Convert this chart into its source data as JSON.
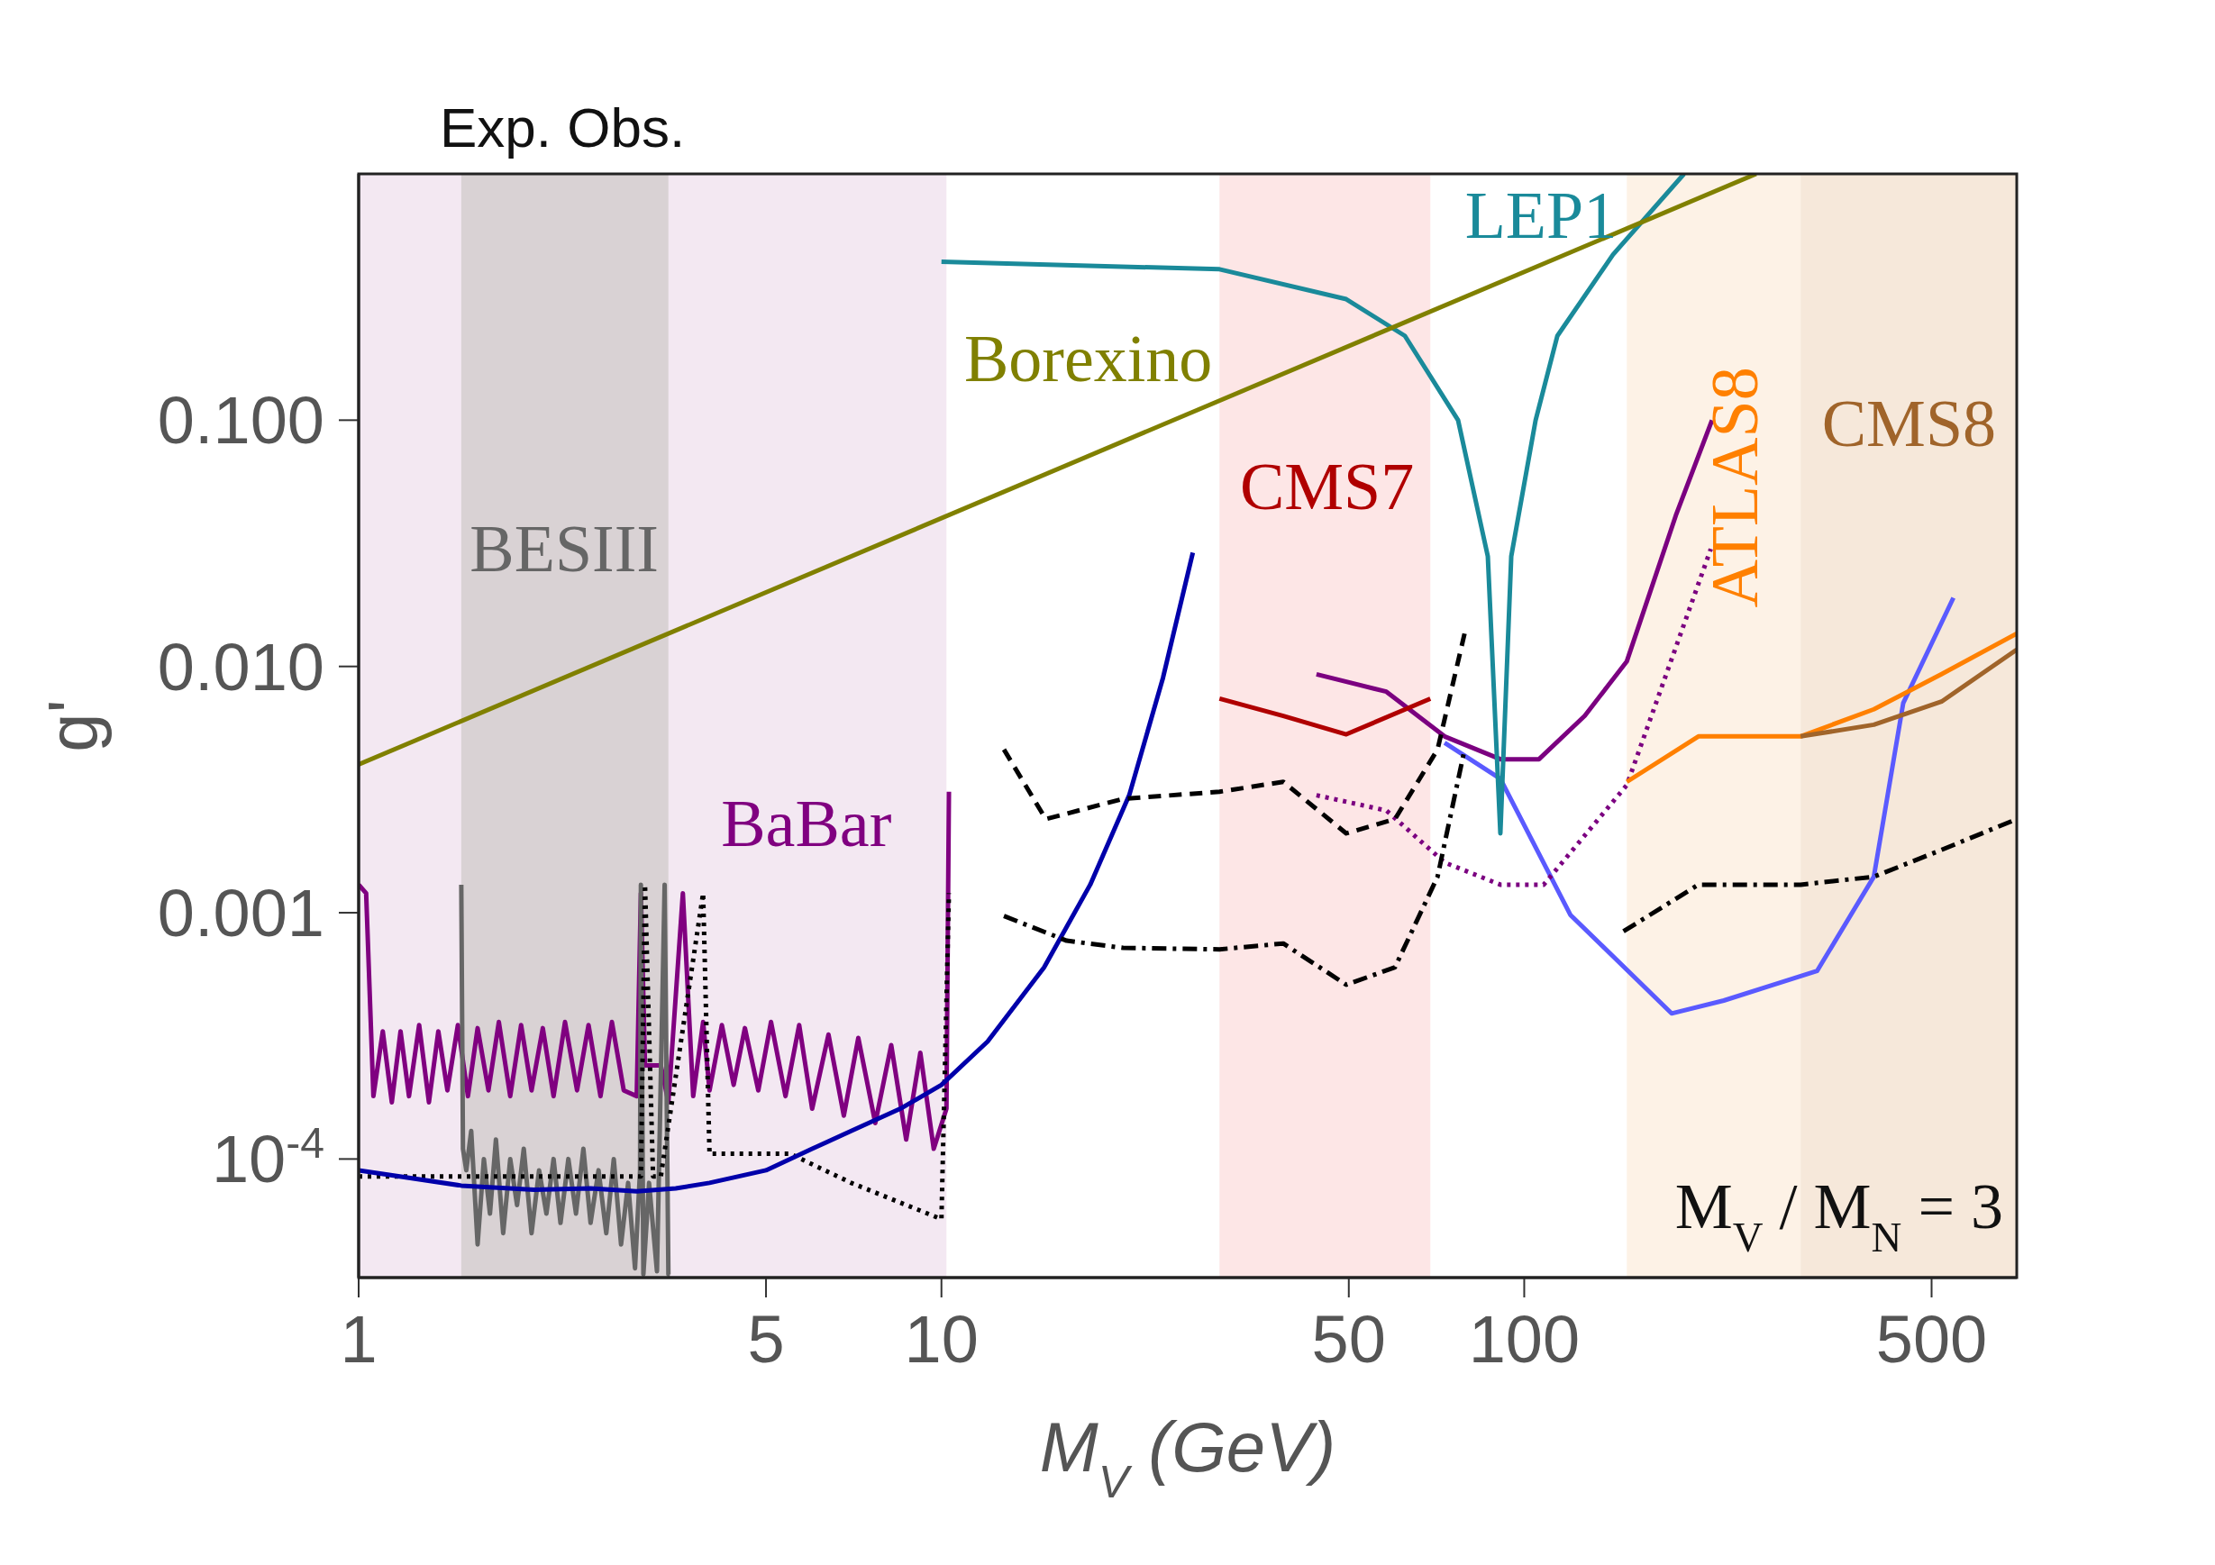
{
  "chart_data": {
    "type": "line",
    "xlabel": "M$_{V}$ (GeV)",
    "ylabel": "g'",
    "log": "xy",
    "marker": "none",
    "xlim": [
      1,
      700
    ],
    "xticks": [
      1,
      5,
      10,
      50,
      100,
      500
    ],
    "ylim": [
      3.3e-05,
      1
    ],
    "yticks": [
      {
        "value": 0.0001,
        "label": "10$^{-4}$"
      },
      {
        "value": 0.001,
        "label": "0.001"
      },
      {
        "value": 0.01,
        "label": "0.010"
      },
      {
        "value": 0.1,
        "label": "0.100"
      }
    ],
    "annotations": [
      "Exp. Obs.",
      "M$_{V}$ / M$_{N}$ = 3"
    ],
    "bands": [
      {
        "axis": "x",
        "from": 1,
        "to": 10.2,
        "color": "#f3e8f2"
      },
      {
        "axis": "x",
        "from": 1.5,
        "to": 3.4,
        "color": "#d9d2d4"
      },
      {
        "axis": "x",
        "from": 30,
        "to": 69,
        "color": "#fde6e6"
      },
      {
        "axis": "x",
        "from": 150,
        "to": 298,
        "color": "#fdf2e6"
      },
      {
        "axis": "x",
        "from": 298,
        "to": 700,
        "color": "#f6e8da"
      }
    ],
    "series": [
      {
        "name": "BaBar",
        "color": "#800080",
        "line_style": "solid",
        "x": [
          1,
          1.03,
          1.06,
          1.1,
          1.14,
          1.18,
          1.22,
          1.27,
          1.32,
          1.37,
          1.42,
          1.48,
          1.54,
          1.6,
          1.67,
          1.74,
          1.82,
          1.9,
          1.98,
          2.07,
          2.16,
          2.26,
          2.37,
          2.48,
          2.6,
          2.72,
          2.85,
          3.0,
          3.05,
          3.1,
          3.3,
          3.4,
          3.6,
          3.75,
          3.9,
          4.0,
          4.2,
          4.4,
          4.6,
          4.85,
          5.1,
          5.4,
          5.7,
          6.0,
          6.4,
          6.8,
          7.2,
          7.7,
          8.2,
          8.7,
          9.2,
          9.7,
          10.2,
          10.3
        ],
        "values": [
          0.0013,
          0.0012,
          0.00018,
          0.00033,
          0.00017,
          0.00033,
          0.00018,
          0.00035,
          0.00017,
          0.00033,
          0.00019,
          0.00035,
          0.00018,
          0.00034,
          0.00019,
          0.00036,
          0.00018,
          0.00035,
          0.00019,
          0.00034,
          0.00018,
          0.00036,
          0.00019,
          0.00035,
          0.00018,
          0.00036,
          0.00019,
          0.00018,
          0.0012,
          0.00024,
          0.00024,
          0.00017,
          0.0012,
          0.00018,
          0.00036,
          0.00019,
          0.00035,
          0.0002,
          0.00034,
          0.00019,
          0.00036,
          0.00018,
          0.00035,
          0.00016,
          0.00032,
          0.00015,
          0.00031,
          0.00014,
          0.00029,
          0.00012,
          0.00027,
          0.00011,
          0.00016,
          0.0031
        ]
      },
      {
        "name": "BESIII",
        "color": "#666666",
        "line_style": "solid",
        "x": [
          1.5,
          1.51,
          1.53,
          1.56,
          1.6,
          1.64,
          1.68,
          1.72,
          1.77,
          1.82,
          1.87,
          1.92,
          1.98,
          2.04,
          2.1,
          2.16,
          2.22,
          2.29,
          2.36,
          2.43,
          2.5,
          2.58,
          2.66,
          2.74,
          2.82,
          2.9,
          2.98,
          3.04,
          3.05,
          3.08,
          3.15,
          3.25,
          3.35,
          3.4,
          3.42
        ],
        "values": [
          0.0013,
          0.00011,
          9e-05,
          0.00013,
          4.5e-05,
          0.0001,
          6e-05,
          0.00012,
          5e-05,
          0.0001,
          6.5e-05,
          0.00011,
          5e-05,
          9e-05,
          6e-05,
          0.0001,
          5.5e-05,
          0.0001,
          6e-05,
          0.00011,
          5.5e-05,
          9e-05,
          5e-05,
          0.0001,
          4.5e-05,
          8e-05,
          3.6e-05,
          9e-05,
          0.0013,
          3.4e-05,
          8e-05,
          3.5e-05,
          0.0013,
          3.4e-05,
          3.4e-05
        ]
      },
      {
        "color": "#000000",
        "line_style": "dotted",
        "x": [
          1,
          2,
          3.05,
          3.1,
          3.2,
          3.3,
          3.9,
          4.0,
          5.5,
          7,
          10,
          10.3
        ],
        "values": [
          8.5e-05,
          8.5e-05,
          8.5e-05,
          0.0013,
          8.5e-05,
          8.5e-05,
          0.0012,
          0.000105,
          0.000105,
          8e-05,
          5.7e-05,
          0.0012
        ]
      },
      {
        "color": "#0000aa",
        "line_style": "solid",
        "x": [
          1,
          1.5,
          2,
          2.5,
          3,
          3.5,
          4,
          5,
          6,
          7,
          8.5,
          10,
          12,
          15,
          18,
          21,
          24,
          27
        ],
        "values": [
          9e-05,
          7.8e-05,
          7.5e-05,
          7.6e-05,
          7.4e-05,
          7.6e-05,
          8e-05,
          9e-05,
          0.00011,
          0.00013,
          0.00016,
          0.0002,
          0.0003,
          0.0006,
          0.0013,
          0.003,
          0.009,
          0.029
        ]
      },
      {
        "color": "#5a5aff",
        "line_style": "solid",
        "x": [
          73,
          91,
          120,
          179,
          220,
          268,
          318,
          398,
          447,
          545
        ],
        "values": [
          0.0049,
          0.0035,
          0.00098,
          0.00039,
          0.00044,
          0.00051,
          0.00058,
          0.0014,
          0.0071,
          0.019
        ]
      },
      {
        "color": "#7b0080",
        "line_style": "solid",
        "x": [
          44,
          58,
          73,
          91,
          106,
          127,
          150,
          182,
          210
        ],
        "values": [
          0.0093,
          0.0079,
          0.0052,
          0.0042,
          0.0042,
          0.0063,
          0.0105,
          0.041,
          0.1
        ]
      },
      {
        "color": "#7b0080",
        "line_style": "dotted",
        "x": [
          44,
          58,
          73,
          91,
          108,
          150,
          209
        ],
        "values": [
          0.003,
          0.0026,
          0.0016,
          0.0013,
          0.0013,
          0.0033,
          0.03
        ]
      },
      {
        "color": "#000000",
        "line_style": "dashed",
        "x": [
          12.8,
          15.1,
          20.5,
          30,
          38.6,
          49.5,
          60,
          71,
          79
        ],
        "values": [
          0.0046,
          0.0024,
          0.0029,
          0.0031,
          0.0034,
          0.0021,
          0.0024,
          0.0046,
          0.0136
        ]
      },
      {
        "color": "#000000",
        "line_style": "dashdot",
        "x": [
          12.8,
          16.4,
          20.5,
          30,
          38.6,
          49.5,
          60,
          71,
          79
        ],
        "values": [
          0.00097,
          0.00077,
          0.00072,
          0.00071,
          0.00075,
          0.00051,
          0.0006,
          0.0014,
          0.0046
        ]
      },
      {
        "color": "#000000",
        "line_style": "dashdot",
        "x": [
          148,
          199,
          298,
          398,
          520,
          700
        ],
        "values": [
          0.00084,
          0.0013,
          0.0013,
          0.0014,
          0.0018,
          0.0024
        ]
      },
      {
        "name": "CMS7",
        "color": "#b00000",
        "line_style": "solid",
        "x": [
          30,
          38.6,
          49.5,
          69
        ],
        "values": [
          0.0074,
          0.0063,
          0.0053,
          0.0074
        ]
      },
      {
        "name": "ATLAS8",
        "color": "#ff8000",
        "line_style": "solid",
        "x": [
          150,
          199,
          298,
          398,
          520,
          700
        ],
        "values": [
          0.0034,
          0.0052,
          0.0052,
          0.0067,
          0.0093,
          0.0136
        ]
      },
      {
        "name": "CMS8",
        "color": "#a0642a",
        "line_style": "solid",
        "x": [
          298,
          398,
          520,
          700
        ],
        "values": [
          0.0052,
          0.0058,
          0.0072,
          0.0117
        ]
      },
      {
        "name": "LEP1",
        "color": "#1a8a9a",
        "line_style": "solid",
        "x": [
          10,
          30,
          49.5,
          62.4,
          77,
          86.6,
          91,
          95,
          104.6,
          114,
          142,
          188
        ],
        "values": [
          0.44,
          0.41,
          0.31,
          0.22,
          0.1,
          0.028,
          0.0021,
          0.028,
          0.1,
          0.22,
          0.47,
          1.0
        ]
      },
      {
        "name": "Borexino",
        "color": "#808000",
        "line_style": "solid",
        "x": [
          1,
          250
        ],
        "values": [
          0.004,
          1.0
        ]
      }
    ]
  }
}
